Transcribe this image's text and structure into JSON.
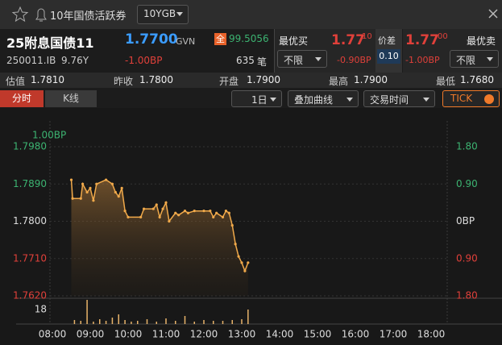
{
  "header": {
    "title": "10年国债活跃券",
    "selector": "10YGB"
  },
  "quote": {
    "name": "25附息国债11",
    "price": "1.7700",
    "price_unit": "GVN",
    "full_tag": "全",
    "full_price": "99.5056",
    "code": "250011.IB",
    "term": "9.76Y",
    "change": "-1.00BP",
    "count": "635",
    "count_unit": "笔"
  },
  "best_bid": {
    "label": "最优买",
    "price": "1.77",
    "price_sup": "10",
    "filter": "不限",
    "change": "-0.90BP"
  },
  "spread": {
    "label": "价差",
    "value": "0.10"
  },
  "best_ask": {
    "label": "最优卖",
    "price": "1.77",
    "price_sup": "00",
    "filter": "不限",
    "change": "-1.00BP"
  },
  "stats": [
    {
      "label": "估值",
      "value": "1.7810"
    },
    {
      "label": "昨收",
      "value": "1.7800"
    },
    {
      "label": "开盘",
      "value": "1.7900"
    },
    {
      "label": "最高",
      "value": "1.7900"
    },
    {
      "label": "最低",
      "value": "1.7680"
    }
  ],
  "tabs": [
    "分时",
    "K线"
  ],
  "controls": [
    "1日",
    "叠加曲线",
    "交易时间",
    "TICK"
  ],
  "chart_data": {
    "type": "line",
    "annotation": "1.00BP",
    "x": [
      "08:30",
      "08:32",
      "08:45",
      "08:48",
      "08:55",
      "09:00",
      "09:05",
      "09:10",
      "09:25",
      "09:35",
      "09:40",
      "09:45",
      "09:50",
      "09:55",
      "10:00",
      "10:20",
      "10:25",
      "10:40",
      "10:45",
      "10:50",
      "10:55",
      "11:00",
      "11:05",
      "11:15",
      "11:20",
      "11:30",
      "11:35",
      "11:45",
      "12:00",
      "12:10",
      "12:15",
      "12:20",
      "12:30",
      "12:35",
      "12:40",
      "12:45",
      "12:50",
      "12:55",
      "13:00",
      "13:05",
      "13:10"
    ],
    "series": [
      {
        "color": "#f0a94a",
        "values": [
          1.79,
          1.7855,
          1.7855,
          1.789,
          1.787,
          1.788,
          1.785,
          1.789,
          1.79,
          1.789,
          1.787,
          1.786,
          1.788,
          1.7825,
          1.781,
          1.781,
          1.783,
          1.783,
          1.784,
          1.781,
          1.783,
          1.7845,
          1.78,
          1.782,
          1.7815,
          1.7825,
          1.782,
          1.7825,
          1.7825,
          1.7825,
          1.781,
          1.782,
          1.781,
          1.7825,
          1.782,
          1.779,
          1.7745,
          1.7715,
          1.77,
          1.768,
          1.77
        ]
      }
    ],
    "xlim": [
      "08:00",
      "18:00"
    ],
    "xticks": [
      "08:00",
      "09:00",
      "10:00",
      "11:00",
      "12:00",
      "13:00",
      "14:00",
      "15:00",
      "16:00",
      "17:00",
      "18:00"
    ],
    "ylim": [
      1.762,
      1.798
    ],
    "yticks": [
      {
        "value": 1.798,
        "label": "1.7980"
      },
      {
        "value": 1.789,
        "label": "1.7890"
      },
      {
        "value": 1.78,
        "label": "1.7800"
      },
      {
        "value": 1.771,
        "label": "1.7710"
      },
      {
        "value": 1.762,
        "label": "1.7620"
      }
    ],
    "y2lim": [
      -1.8,
      1.8
    ],
    "y2ticks": [
      {
        "value": 1.8,
        "label": "1.80"
      },
      {
        "value": 0.9,
        "label": "0.90"
      },
      {
        "value": 0,
        "label": "0BP"
      },
      {
        "value": -0.9,
        "label": "0.90"
      },
      {
        "value": -1.8,
        "label": "1.80"
      }
    ],
    "grid": true,
    "volume": {
      "color": "#e8b36a",
      "x": [
        "08:35",
        "08:45",
        "08:55",
        "09:05",
        "09:15",
        "09:25",
        "09:35",
        "09:45",
        "09:55",
        "10:05",
        "10:15",
        "10:30",
        "10:45",
        "11:00",
        "11:15",
        "11:30",
        "11:45",
        "12:00",
        "12:15",
        "12:30",
        "12:45",
        "13:00",
        "13:10"
      ],
      "values": [
        5,
        4,
        30,
        3,
        6,
        4,
        8,
        12,
        5,
        3,
        4,
        6,
        3,
        7,
        4,
        10,
        3,
        5,
        4,
        4,
        5,
        6,
        18
      ],
      "ylim": [
        0,
        29
      ],
      "yticks": [
        18
      ]
    }
  }
}
